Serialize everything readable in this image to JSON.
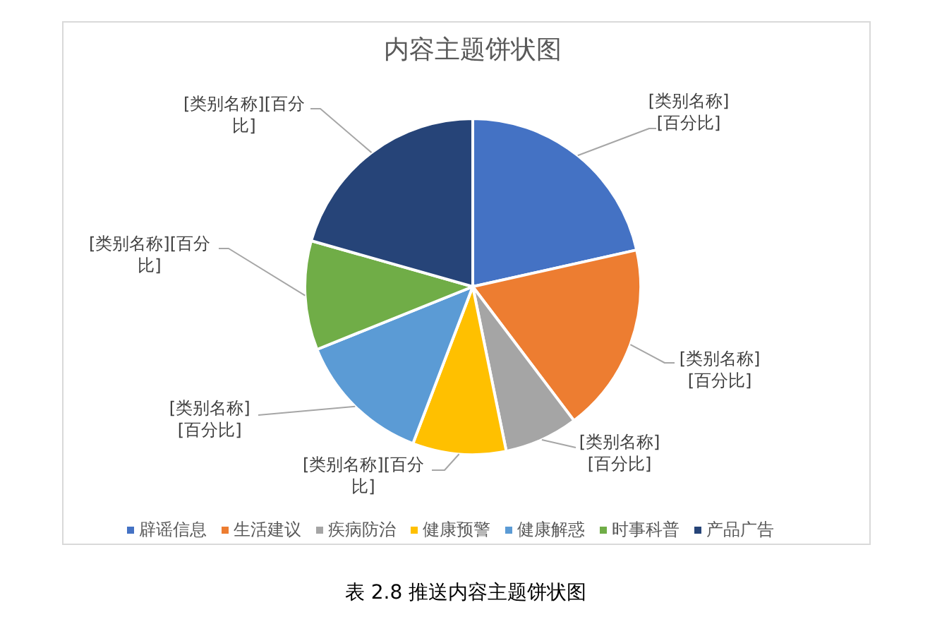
{
  "chart_data": {
    "type": "pie",
    "title": "内容主题饼状图",
    "categories": [
      "辟谣信息",
      "生活建议",
      "疾病防治",
      "健康预警",
      "健康解惑",
      "时事科普",
      "产品广告"
    ],
    "values": [
      21.5,
      18.2,
      7.1,
      9.0,
      13.1,
      10.5,
      20.6
    ],
    "colors": [
      "#4472c4",
      "#ed7d31",
      "#a5a5a5",
      "#ffc000",
      "#5b9bd5",
      "#70ad47",
      "#264478"
    ],
    "value_labels": [
      "[类别名称][百分比]",
      "[类别名称][百分比]",
      "[类别名称][百分比]",
      "[类别名称][百分比]",
      "[类别名称][百分比]",
      "[类别名称][百分比]",
      "[类别名称][百分比]"
    ],
    "legend": "bottom",
    "annotations": [
      "表 2.8 推送内容主题饼状图"
    ]
  }
}
